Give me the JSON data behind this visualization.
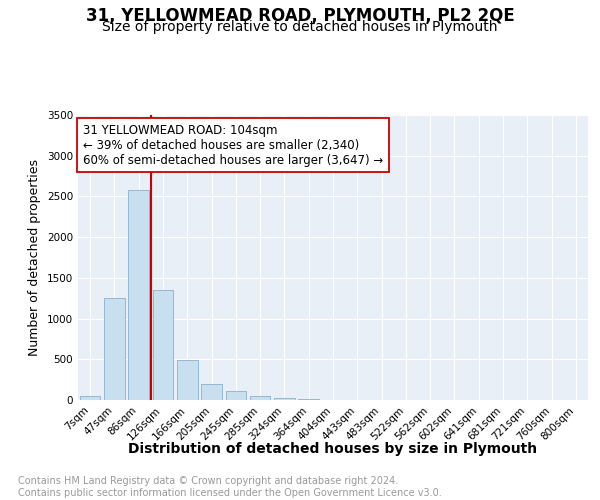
{
  "title1": "31, YELLOWMEAD ROAD, PLYMOUTH, PL2 2QE",
  "title2": "Size of property relative to detached houses in Plymouth",
  "xlabel": "Distribution of detached houses by size in Plymouth",
  "ylabel": "Number of detached properties",
  "footnote": "Contains HM Land Registry data © Crown copyright and database right 2024.\nContains public sector information licensed under the Open Government Licence v3.0.",
  "categories": [
    "7sqm",
    "47sqm",
    "86sqm",
    "126sqm",
    "166sqm",
    "205sqm",
    "245sqm",
    "285sqm",
    "324sqm",
    "364sqm",
    "404sqm",
    "443sqm",
    "483sqm",
    "522sqm",
    "562sqm",
    "602sqm",
    "641sqm",
    "681sqm",
    "721sqm",
    "760sqm",
    "800sqm"
  ],
  "values": [
    50,
    1250,
    2580,
    1350,
    490,
    200,
    110,
    50,
    20,
    10,
    5,
    3,
    3,
    0,
    0,
    0,
    0,
    0,
    0,
    0,
    0
  ],
  "bar_color": "#c8dff0",
  "bar_edge_color": "#8ab0cc",
  "vline_color": "#cc0000",
  "vline_x_index": 2.5,
  "annotation_text": "31 YELLOWMEAD ROAD: 104sqm\n← 39% of detached houses are smaller (2,340)\n60% of semi-detached houses are larger (3,647) →",
  "annotation_box_color": "#ffffff",
  "annotation_box_edge": "#cc0000",
  "ylim": [
    0,
    3500
  ],
  "yticks": [
    0,
    500,
    1000,
    1500,
    2000,
    2500,
    3000,
    3500
  ],
  "bg_color": "#e8eff6",
  "grid_color": "#ffffff",
  "title1_fontsize": 12,
  "title2_fontsize": 10,
  "xlabel_fontsize": 10,
  "ylabel_fontsize": 9,
  "annotation_fontsize": 8.5,
  "tick_fontsize": 7.5,
  "footnote_fontsize": 7,
  "footnote_color": "#999999"
}
